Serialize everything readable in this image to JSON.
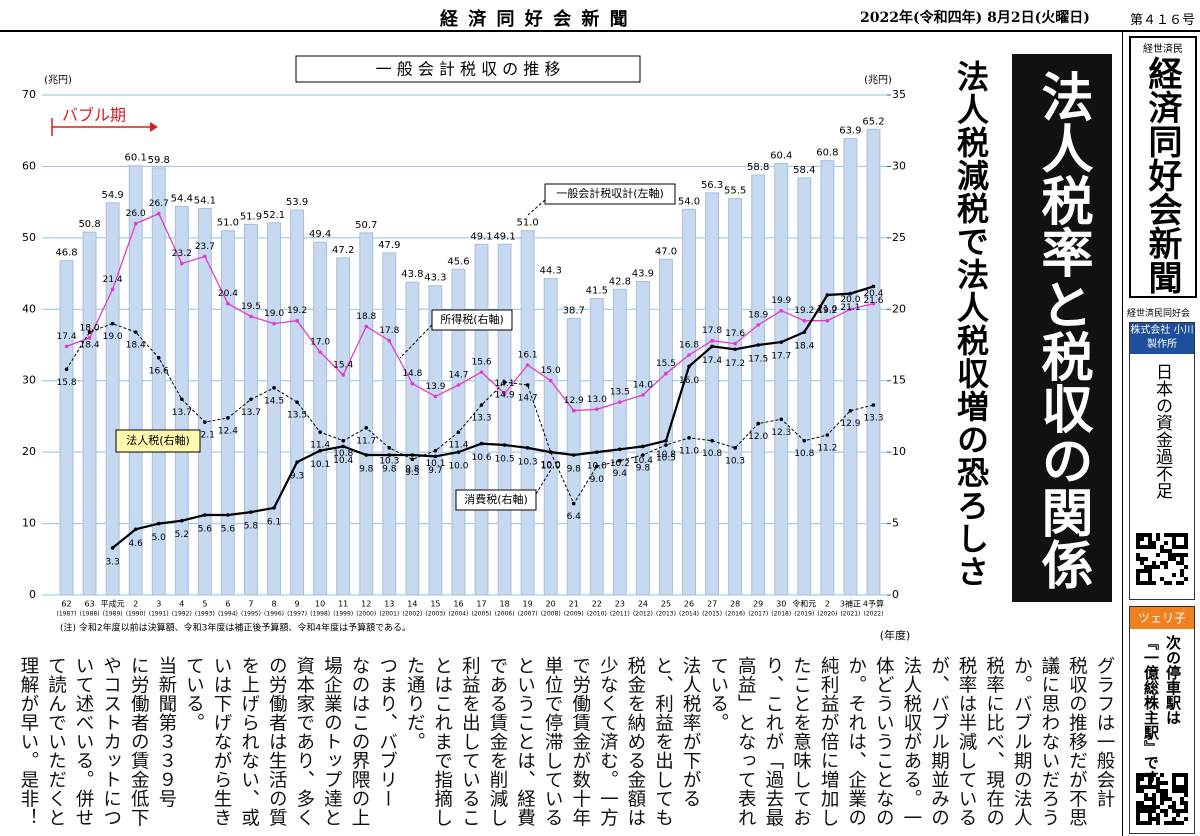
{
  "header": {
    "title": "経 済 同 好 会 新 聞",
    "date": "2022年(令和四年) 8月2日(火曜日)",
    "issue": "第４１６号"
  },
  "chart_data": {
    "type": "bar",
    "title": "一 般 会 計 税 収 の 推 移",
    "y_unit": "(兆円)",
    "y2_unit": "(兆円)",
    "x_unit": "(年度)",
    "note": "(注) 令和2年度以前は決算額、令和3年度は補正後予算額、令和4年度は予算額である。",
    "bubble_label": "バブル期",
    "categories": [
      "62",
      "63",
      "平成元",
      "2",
      "3",
      "4",
      "5",
      "6",
      "7",
      "8",
      "9",
      "10",
      "11",
      "12",
      "13",
      "14",
      "15",
      "16",
      "17",
      "18",
      "19",
      "20",
      "21",
      "22",
      "23",
      "24",
      "25",
      "26",
      "27",
      "28",
      "29",
      "30",
      "令和元",
      "2",
      "3補正",
      "4予算"
    ],
    "category_years": [
      "(1987)",
      "(1988)",
      "(1989)",
      "(1990)",
      "(1991)",
      "(1992)",
      "(1993)",
      "(1994)",
      "(1995)",
      "(1996)",
      "(1997)",
      "(1998)",
      "(1999)",
      "(2000)",
      "(2001)",
      "(2002)",
      "(2003)",
      "(2004)",
      "(2005)",
      "(2006)",
      "(2007)",
      "(2008)",
      "(2009)",
      "(2010)",
      "(2011)",
      "(2012)",
      "(2013)",
      "(2014)",
      "(2015)",
      "(2016)",
      "(2017)",
      "(2018)",
      "(2019)",
      "(2020)",
      "(2021)",
      "(2022)"
    ],
    "ylim": [
      0,
      70
    ],
    "yticks": [
      0,
      10,
      20,
      30,
      40,
      50,
      60,
      70
    ],
    "y2lim": [
      0,
      35
    ],
    "y2ticks": [
      0,
      5,
      10,
      15,
      20,
      25,
      30,
      35
    ],
    "grid": true,
    "series": [
      {
        "name": "一般会計税収計(左軸)",
        "type": "bar",
        "color": "#c6d9f0",
        "values": [
          46.8,
          50.8,
          54.9,
          60.1,
          59.8,
          54.4,
          54.1,
          51.0,
          51.9,
          52.1,
          53.9,
          49.4,
          47.2,
          50.7,
          47.9,
          43.8,
          43.3,
          45.6,
          49.1,
          49.1,
          51.0,
          44.3,
          38.7,
          41.5,
          42.8,
          43.9,
          47.0,
          54.0,
          56.3,
          55.5,
          58.8,
          60.4,
          58.4,
          60.8,
          63.9,
          65.2
        ],
        "value_labels": [
          "46.8",
          "50.8",
          "54.9",
          "60.1",
          "59.8",
          "54.4",
          "54.1",
          "51.0",
          "51.9",
          "52.1",
          "53.9",
          "49.4",
          "47.2",
          "50.7",
          "47.9",
          "43.8",
          "43.3",
          "45.6",
          "49.1",
          "49.1",
          "51.0",
          "44.3",
          "38.7",
          "41.5",
          "42.8",
          "43.9",
          "47.0",
          "54.0",
          "56.3",
          "55.5",
          "58.8",
          "60.4",
          "58.4",
          "60.8",
          "63.9",
          "65.2"
        ]
      },
      {
        "name": "所得税(右軸)",
        "type": "line",
        "axis": "y2",
        "color": "#e23bc8",
        "values": [
          17.4,
          18.0,
          21.4,
          26.0,
          26.7,
          23.2,
          23.7,
          20.4,
          19.5,
          19.0,
          19.2,
          17.0,
          15.4,
          18.8,
          17.8,
          14.8,
          13.9,
          14.7,
          15.6,
          14.1,
          16.1,
          15.0,
          12.9,
          13.0,
          13.5,
          14.0,
          15.5,
          16.8,
          17.8,
          17.6,
          18.9,
          19.9,
          19.2,
          19.2,
          20.0,
          20.4
        ],
        "value_labels": [
          "17.4",
          "18.0",
          "21.4",
          "26.0",
          "26.7",
          "23.2",
          "23.7",
          "20.4",
          "19.5",
          "19.0",
          "19.2",
          "17.0",
          "15.4",
          "18.8",
          "17.8",
          "14.8",
          "13.9",
          "14.7",
          "15.6",
          "14.1",
          "16.1",
          "15.0",
          "12.9",
          "13.0",
          "13.5",
          "14.0",
          "15.5",
          "16.8",
          "17.8",
          "17.6",
          "18.9",
          "19.9",
          "19.2",
          "19.2",
          "20.0",
          "20.4"
        ]
      },
      {
        "name": "法人税(右軸)",
        "type": "line",
        "axis": "y2",
        "color": "#000000",
        "dashed": true,
        "values": [
          15.8,
          18.4,
          19.0,
          18.4,
          16.6,
          13.7,
          12.1,
          12.4,
          13.7,
          14.5,
          13.5,
          11.4,
          10.8,
          11.7,
          10.3,
          9.5,
          10.1,
          11.4,
          13.3,
          14.9,
          14.7,
          10.0,
          6.4,
          9.0,
          9.4,
          9.8,
          10.5,
          11.0,
          10.8,
          10.3,
          12.0,
          12.3,
          10.8,
          11.2,
          12.9,
          13.3
        ],
        "value_labels": [
          "15.8",
          "18.4",
          "19.0",
          "18.4",
          "16.6",
          "13.7",
          "12.1",
          "12.4",
          "13.7",
          "14.5",
          "13.5",
          "11.4",
          "10.8",
          "11.7",
          "10.3",
          "9.5",
          "10.1",
          "11.4",
          "13.3",
          "14.9",
          "14.7",
          "10.0",
          "6.4",
          "9.0",
          "9.4",
          "9.8",
          "10.5",
          "11.0",
          "10.8",
          "10.3",
          "12.0",
          "12.3",
          "10.8",
          "11.2",
          "12.9",
          "13.3"
        ]
      },
      {
        "name": "消費税(右軸)",
        "type": "line",
        "axis": "y2",
        "color": "#000000",
        "dashed": false,
        "values": [
          null,
          null,
          3.3,
          4.6,
          5.0,
          5.2,
          5.6,
          5.6,
          5.8,
          6.1,
          9.3,
          10.1,
          10.4,
          9.8,
          9.8,
          9.8,
          9.7,
          10.0,
          10.6,
          10.5,
          10.3,
          10.0,
          9.8,
          10.0,
          10.2,
          10.4,
          10.8,
          16.0,
          17.4,
          17.2,
          17.5,
          17.7,
          18.4,
          21.0,
          21.1,
          21.6
        ],
        "value_labels": [
          null,
          null,
          "3.3",
          "4.6",
          "5.0",
          "5.2",
          "5.6",
          "5.6",
          "5.8",
          "6.1",
          "9.3",
          "10.1",
          "10.4",
          "9.8",
          "9.8",
          "9.8",
          "9.7",
          "10.0",
          "10.6",
          "10.5",
          "10.3",
          "10.0",
          "9.8",
          "10.0",
          "10.2",
          "10.4",
          "10.8",
          "16.0",
          "17.4",
          "17.2",
          "17.5",
          "17.7",
          "18.4",
          "21.0",
          "21.1",
          "21.6"
        ]
      }
    ]
  },
  "headline": "法人税率と税収の関係",
  "subheadline": "法人税減税で法人税収増の恐ろしさ",
  "body": {
    "columns": [
      "グラフは一般会計",
      "税収の推移だが不思",
      "議に思わないだろう",
      "か。バブル期の法人",
      "税率に比べ、現在の",
      "税率は半減している",
      "が、バブル期並みの",
      "法人税収がある。一",
      "体どういうことなの",
      "か。それは、企業の",
      "純利益が倍に増加し",
      "たことを意味してお",
      "り、これが「過去最",
      "高益」となって表れ",
      "ている。",
      "法人税率が下がる",
      "と、利益を出しても",
      "税金を納める金額は",
      "少なくて済む。一方",
      "で労働賃金が数十年",
      "単位で停滞している",
      "ということは、経費",
      "である賃金を削減し",
      "利益を出しているこ",
      "とはこれまで指摘し",
      "た通りだ。",
      "つまり、バブリー",
      "なのはこの界隈の上",
      "場企業のトップ達と",
      "資本家であり、多く",
      "の労働者は生活の質",
      "を上げられない、或",
      "いは下げながら生き",
      "ている。",
      "当新聞第３３９号",
      "に労働者の賃金低下",
      "やコストカットにつ",
      "いて述べいる。併せ",
      "て読んでいただくと",
      "理解が早い。是非！"
    ]
  },
  "sidebar": {
    "logo_small": "経世済民",
    "logo": "経済同好会新聞",
    "org": "経世済民同好会",
    "ad1_company": "株式会社 小川製作所",
    "ad1_text": "日本の資金過不足",
    "ad2_label": "ツェリ子",
    "ad2_text": [
      "次の停車駅は",
      "『一億総株主駅』です"
    ]
  }
}
